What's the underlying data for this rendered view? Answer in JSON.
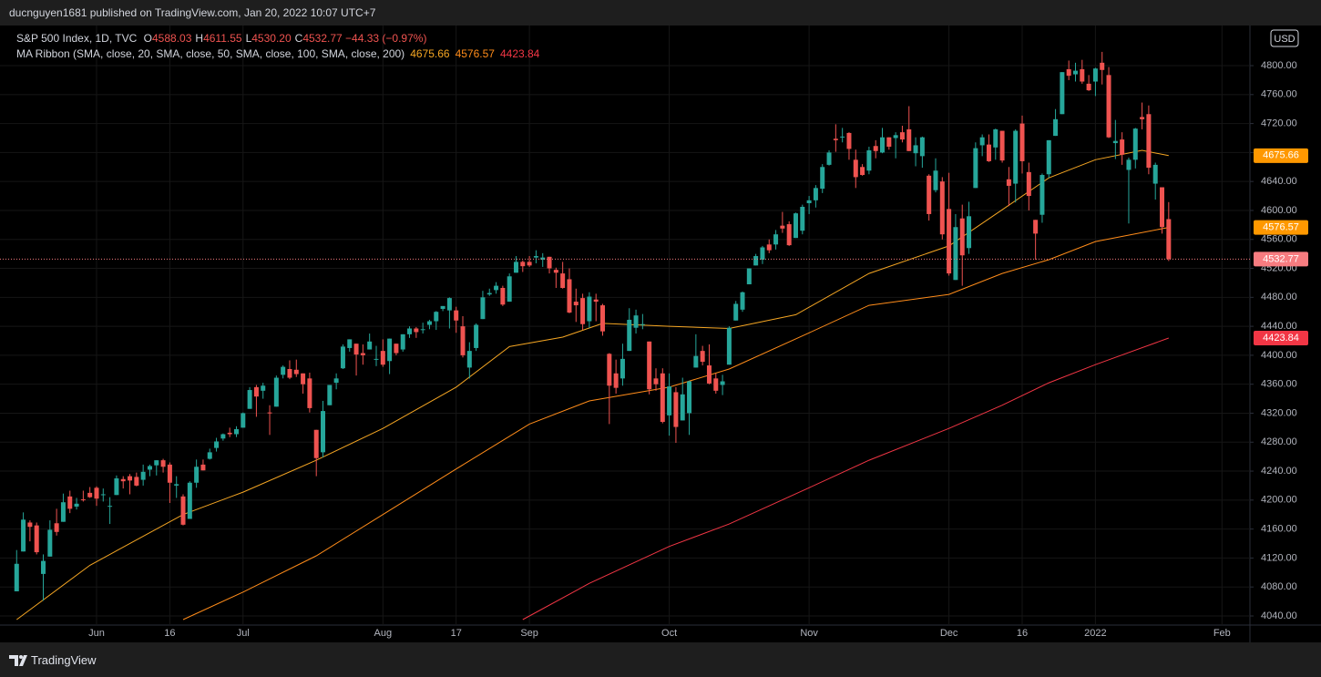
{
  "header": {
    "text": "ducnguyen1681 published on TradingView.com, Jan 20, 2022 10:07 UTC+7"
  },
  "footer": {
    "brand": "TradingView"
  },
  "chart_data": {
    "type": "candlestick",
    "legend": {
      "name": "S&P 500 Index, 1D, TVC",
      "fields": [
        {
          "key": "O",
          "value": "4588.03"
        },
        {
          "key": "H",
          "value": "4611.55"
        },
        {
          "key": "L",
          "value": "4530.20"
        },
        {
          "key": "C",
          "value": "4532.77"
        }
      ],
      "change": "−44.33 (−0.97%)",
      "ma_name": "MA Ribbon (SMA, close, 20, SMA, close, 50, SMA, close, 100, SMA, close, 200)",
      "ma_values": [
        "4675.66",
        "4576.57",
        "4423.84"
      ]
    },
    "currency": "USD",
    "up_color": "#26a69a",
    "down_color": "#ef5350",
    "price_line_color": "#f77c80",
    "xlim": [
      -2.5,
      185.2
    ],
    "ylim": [
      4027.4,
      4855.4
    ],
    "yticks": [
      {
        "value": 4040,
        "label": "4040.00"
      },
      {
        "value": 4080,
        "label": "4080.00"
      },
      {
        "value": 4120,
        "label": "4120.00"
      },
      {
        "value": 4160,
        "label": "4160.00"
      },
      {
        "value": 4200,
        "label": "4200.00"
      },
      {
        "value": 4240,
        "label": "4240.00"
      },
      {
        "value": 4280,
        "label": "4280.00"
      },
      {
        "value": 4320,
        "label": "4320.00"
      },
      {
        "value": 4360,
        "label": "4360.00"
      },
      {
        "value": 4400,
        "label": "4400.00"
      },
      {
        "value": 4440,
        "label": "4440.00"
      },
      {
        "value": 4480,
        "label": "4480.00"
      },
      {
        "value": 4520,
        "label": "4520.00"
      },
      {
        "value": 4560,
        "label": "4560.00"
      },
      {
        "value": 4600,
        "label": "4600.00"
      },
      {
        "value": 4640,
        "label": "4640.00"
      },
      {
        "value": 4680,
        "label": "4680.00"
      },
      {
        "value": 4720,
        "label": "4720.00"
      },
      {
        "value": 4760,
        "label": "4760.00"
      },
      {
        "value": 4800,
        "label": "4800.00"
      }
    ],
    "xticks": [
      {
        "value": 12,
        "label": "Jun"
      },
      {
        "value": 23,
        "label": "16"
      },
      {
        "value": 34,
        "label": "Jul"
      },
      {
        "value": 55,
        "label": "Aug"
      },
      {
        "value": 66,
        "label": "17"
      },
      {
        "value": 77,
        "label": "Sep"
      },
      {
        "value": 98,
        "label": "Oct"
      },
      {
        "value": 119,
        "label": "Nov"
      },
      {
        "value": 140,
        "label": "Dec"
      },
      {
        "value": 151,
        "label": "16"
      },
      {
        "value": 162,
        "label": "2022"
      },
      {
        "value": 181,
        "label": "Feb"
      }
    ],
    "grid": true,
    "candles": [
      [
        4074,
        4131,
        4074,
        4112
      ],
      [
        4129,
        4183,
        4129,
        4173
      ],
      [
        4169,
        4172,
        4143,
        4163
      ],
      [
        4165,
        4169,
        4125,
        4128
      ],
      [
        4098,
        4125,
        4061,
        4116
      ],
      [
        4122,
        4172,
        4122,
        4159
      ],
      [
        4168,
        4188,
        4151,
        4156
      ],
      [
        4170,
        4209,
        4170,
        4197
      ],
      [
        4205,
        4213,
        4182,
        4188
      ],
      [
        4191,
        4203,
        4187,
        4195
      ],
      [
        4201,
        4213,
        4198,
        4200
      ],
      [
        4210,
        4218,
        4203,
        4204
      ],
      [
        4217,
        4219,
        4192,
        4202
      ],
      [
        4207,
        4216,
        4198,
        4208
      ],
      [
        4191,
        4204,
        4167,
        4192
      ],
      [
        4207,
        4234,
        4207,
        4230
      ],
      [
        4229,
        4233,
        4216,
        4226
      ],
      [
        4233,
        4236,
        4208,
        4227
      ],
      [
        4232,
        4238,
        4219,
        4220
      ],
      [
        4228,
        4249,
        4220,
        4239
      ],
      [
        4242,
        4249,
        4233,
        4247
      ],
      [
        4248,
        4255,
        4234,
        4255
      ],
      [
        4255,
        4257,
        4238,
        4246
      ],
      [
        4249,
        4252,
        4196,
        4224
      ],
      [
        4220,
        4233,
        4203,
        4222
      ],
      [
        4205,
        4208,
        4165,
        4166
      ],
      [
        4174,
        4226,
        4174,
        4224
      ],
      [
        4224,
        4256,
        4217,
        4246
      ],
      [
        4249,
        4256,
        4241,
        4241
      ],
      [
        4257,
        4271,
        4256,
        4266
      ],
      [
        4272,
        4286,
        4267,
        4281
      ],
      [
        4285,
        4292,
        4282,
        4291
      ],
      [
        4293,
        4300,
        4287,
        4291
      ],
      [
        4291,
        4302,
        4287,
        4298
      ],
      [
        4300,
        4321,
        4300,
        4320
      ],
      [
        4326,
        4356,
        4326,
        4352
      ],
      [
        4356,
        4359,
        4315,
        4343
      ],
      [
        4351,
        4362,
        4340,
        4358
      ],
      [
        4321,
        4331,
        4290,
        4320
      ],
      [
        4329,
        4372,
        4329,
        4369
      ],
      [
        4373,
        4386,
        4368,
        4384
      ],
      [
        4381,
        4393,
        4367,
        4369
      ],
      [
        4380,
        4394,
        4370,
        4374
      ],
      [
        4375,
        4375,
        4347,
        4360
      ],
      [
        4368,
        4376,
        4321,
        4327
      ],
      [
        4297,
        4297,
        4233,
        4258
      ],
      [
        4266,
        4337,
        4259,
        4323
      ],
      [
        4331,
        4359,
        4331,
        4359
      ],
      [
        4362,
        4375,
        4353,
        4368
      ],
      [
        4382,
        4415,
        4381,
        4412
      ],
      [
        4410,
        4422,
        4405,
        4422
      ],
      [
        4416,
        4416,
        4372,
        4401
      ],
      [
        4403,
        4415,
        4387,
        4400
      ],
      [
        4408,
        4430,
        4408,
        4419
      ],
      [
        4395,
        4413,
        4385,
        4395
      ],
      [
        4406,
        4422,
        4384,
        4387
      ],
      [
        4392,
        4423,
        4374,
        4423
      ],
      [
        4416,
        4416,
        4400,
        4403
      ],
      [
        4408,
        4429,
        4405,
        4429
      ],
      [
        4429,
        4440,
        4424,
        4437
      ],
      [
        4437,
        4439,
        4424,
        4432
      ],
      [
        4436,
        4445,
        4430,
        4436
      ],
      [
        4442,
        4449,
        4436,
        4447
      ],
      [
        4447,
        4461,
        4435,
        4460
      ],
      [
        4464,
        4468,
        4461,
        4468
      ],
      [
        4462,
        4480,
        4437,
        4479
      ],
      [
        4462,
        4467,
        4431,
        4448
      ],
      [
        4440,
        4454,
        4397,
        4400
      ],
      [
        4383,
        4418,
        4368,
        4406
      ],
      [
        4410,
        4444,
        4406,
        4442
      ],
      [
        4450,
        4489,
        4450,
        4480
      ],
      [
        4484,
        4492,
        4482,
        4486
      ],
      [
        4490,
        4501,
        4485,
        4496
      ],
      [
        4493,
        4496,
        4468,
        4470
      ],
      [
        4474,
        4513,
        4474,
        4509
      ],
      [
        4514,
        4537,
        4514,
        4529
      ],
      [
        4529,
        4531,
        4515,
        4523
      ],
      [
        4529,
        4537,
        4522,
        4524
      ],
      [
        4535,
        4545,
        4527,
        4537
      ],
      [
        4532,
        4541,
        4522,
        4535
      ],
      [
        4536,
        4536,
        4513,
        4520
      ],
      [
        4518,
        4521,
        4493,
        4514
      ],
      [
        4513,
        4529,
        4492,
        4493
      ],
      [
        4505,
        4520,
        4458,
        4459
      ],
      [
        4474,
        4492,
        4446,
        4469
      ],
      [
        4479,
        4485,
        4435,
        4443
      ],
      [
        4447,
        4487,
        4438,
        4481
      ],
      [
        4477,
        4485,
        4447,
        4474
      ],
      [
        4469,
        4471,
        4427,
        4433
      ],
      [
        4402,
        4403,
        4305,
        4358
      ],
      [
        4375,
        4394,
        4347,
        4355
      ],
      [
        4368,
        4416,
        4358,
        4395
      ],
      [
        4406,
        4465,
        4406,
        4449
      ],
      [
        4438,
        4463,
        4430,
        4455
      ],
      [
        4443,
        4457,
        4436,
        4443
      ],
      [
        4419,
        4419,
        4346,
        4353
      ],
      [
        4368,
        4382,
        4351,
        4360
      ],
      [
        4375,
        4382,
        4306,
        4308
      ],
      [
        4317,
        4375,
        4289,
        4357
      ],
      [
        4349,
        4356,
        4279,
        4301
      ],
      [
        4310,
        4369,
        4310,
        4346
      ],
      [
        4320,
        4365,
        4290,
        4364
      ],
      [
        4383,
        4429,
        4383,
        4399
      ],
      [
        4406,
        4413,
        4386,
        4391
      ],
      [
        4386,
        4415,
        4360,
        4361
      ],
      [
        4368,
        4375,
        4347,
        4351
      ],
      [
        4359,
        4373,
        4345,
        4364
      ],
      [
        4387,
        4440,
        4387,
        4438
      ],
      [
        4448,
        4475,
        4448,
        4471
      ],
      [
        4463,
        4488,
        4460,
        4487
      ],
      [
        4498,
        4520,
        4498,
        4520
      ],
      [
        4524,
        4540,
        4524,
        4537
      ],
      [
        4532,
        4551,
        4526,
        4549
      ],
      [
        4553,
        4560,
        4541,
        4545
      ],
      [
        4553,
        4573,
        4546,
        4567
      ],
      [
        4579,
        4598,
        4569,
        4575
      ],
      [
        4581,
        4585,
        4551,
        4552
      ],
      [
        4562,
        4597,
        4562,
        4596
      ],
      [
        4572,
        4608,
        4567,
        4605
      ],
      [
        4610,
        4620,
        4595,
        4614
      ],
      [
        4614,
        4635,
        4604,
        4631
      ],
      [
        4630,
        4664,
        4624,
        4660
      ],
      [
        4663,
        4683,
        4662,
        4680
      ],
      [
        4699,
        4719,
        4681,
        4697
      ],
      [
        4702,
        4714,
        4694,
        4702
      ],
      [
        4707,
        4708,
        4670,
        4685
      ],
      [
        4670,
        4684,
        4631,
        4646
      ],
      [
        4660,
        4664,
        4648,
        4649
      ],
      [
        4655,
        4688,
        4650,
        4683
      ],
      [
        4689,
        4697,
        4672,
        4682
      ],
      [
        4680,
        4714,
        4679,
        4701
      ],
      [
        4701,
        4701,
        4684,
        4688
      ],
      [
        4700,
        4708,
        4672,
        4704
      ],
      [
        4708,
        4717,
        4694,
        4698
      ],
      [
        4712,
        4744,
        4682,
        4682
      ],
      [
        4679,
        4701,
        4661,
        4690
      ],
      [
        4675,
        4702,
        4659,
        4701
      ],
      [
        4648,
        4650,
        4586,
        4595
      ],
      [
        4628,
        4672,
        4625,
        4655
      ],
      [
        4640,
        4646,
        4560,
        4567
      ],
      [
        4602,
        4652,
        4510,
        4513
      ],
      [
        4504,
        4595,
        4504,
        4577
      ],
      [
        4589,
        4608,
        4496,
        4538
      ],
      [
        4548,
        4612,
        4540,
        4592
      ],
      [
        4631,
        4694,
        4631,
        4686
      ],
      [
        4690,
        4705,
        4675,
        4701
      ],
      [
        4691,
        4705,
        4667,
        4668
      ],
      [
        4687,
        4713,
        4670,
        4712
      ],
      [
        4710,
        4710,
        4666,
        4669
      ],
      [
        4643,
        4660,
        4606,
        4634
      ],
      [
        4637,
        4712,
        4611,
        4710
      ],
      [
        4720,
        4731,
        4651,
        4668
      ],
      [
        4653,
        4666,
        4600,
        4620
      ],
      [
        4587,
        4587,
        4532,
        4568
      ],
      [
        4594,
        4651,
        4583,
        4649
      ],
      [
        4650,
        4697,
        4645,
        4697
      ],
      [
        4703,
        4740,
        4703,
        4726
      ],
      [
        4733,
        4791,
        4733,
        4791
      ],
      [
        4795,
        4807,
        4780,
        4786
      ],
      [
        4788,
        4804,
        4778,
        4793
      ],
      [
        4795,
        4808,
        4775,
        4778
      ],
      [
        4775,
        4787,
        4765,
        4766
      ],
      [
        4778,
        4797,
        4758,
        4796
      ],
      [
        4804,
        4819,
        4774,
        4794
      ],
      [
        4787,
        4798,
        4700,
        4701
      ],
      [
        4693,
        4725,
        4671,
        4696
      ],
      [
        4698,
        4708,
        4663,
        4677
      ],
      [
        4656,
        4673,
        4582,
        4670
      ],
      [
        4670,
        4714,
        4658,
        4713
      ],
      [
        4729,
        4749,
        4712,
        4726
      ],
      [
        4733,
        4745,
        4650,
        4659
      ],
      [
        4637,
        4666,
        4615,
        4663
      ],
      [
        4632,
        4632,
        4568,
        4577
      ],
      [
        4588.03,
        4611.55,
        4530.2,
        4532.77
      ]
    ],
    "series": [
      {
        "color": "#f5a623",
        "badge_color": "#ff9800",
        "x": [
          0,
          11,
          25,
          34,
          45,
          55,
          66,
          74,
          82,
          88,
          98,
          107,
          117,
          128,
          140,
          148,
          155,
          162,
          169,
          173
        ],
        "values": [
          4035,
          4110,
          4180,
          4211,
          4255,
          4299,
          4356,
          4412,
          4425,
          4444,
          4440,
          4437,
          4456,
          4513,
          4551,
          4601,
          4645,
          4670,
          4683,
          4675.66
        ]
      },
      {
        "color": "#ff8c1a",
        "badge_color": "#ff9800",
        "x": [
          25,
          34,
          45,
          55,
          66,
          77,
          86,
          98,
          107,
          119,
          128,
          140,
          148,
          155,
          162,
          173
        ],
        "values": [
          4035,
          4073,
          4123,
          4180,
          4243,
          4305,
          4337,
          4356,
          4381,
          4431,
          4469,
          4484,
          4513,
          4532,
          4557,
          4576.57
        ]
      },
      {
        "color": "#f23645",
        "badge_color": "#f23645",
        "x": [
          76,
          86,
          98,
          107,
          119,
          128,
          140,
          148,
          155,
          162,
          173
        ],
        "values": [
          4035,
          4085,
          4136,
          4167,
          4217,
          4255,
          4299,
          4331,
          4362,
          4387,
          4423.84
        ]
      }
    ]
  }
}
